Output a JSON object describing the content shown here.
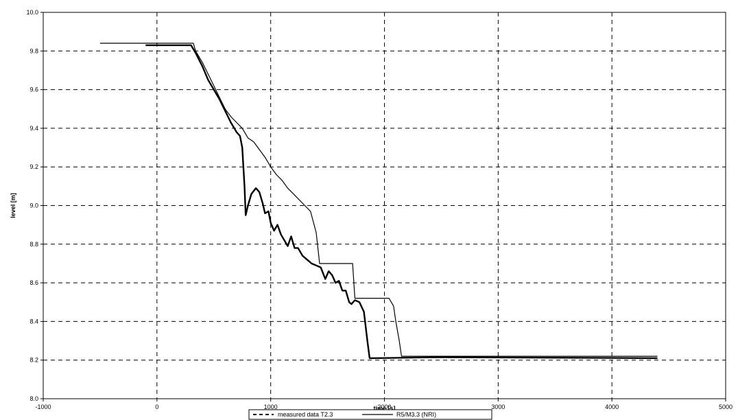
{
  "chart_data": {
    "type": "line",
    "title": "",
    "xlabel": "time [s]",
    "ylabel": "level [m]",
    "xlim": [
      -1000,
      5000
    ],
    "ylim": [
      8.0,
      10.0
    ],
    "x_ticks": [
      "-1000",
      "0",
      "1000",
      "2000",
      "3000",
      "4000",
      "5000"
    ],
    "y_ticks": [
      "8.0",
      "8.2",
      "8.4",
      "8.6",
      "8.8",
      "9.0",
      "9.2",
      "9.4",
      "9.6",
      "9.8",
      "10.0"
    ],
    "grid": true,
    "legend": "bottom",
    "series": [
      {
        "name": "measured data T2.3",
        "color": "#000000",
        "style": "dashed",
        "points": [
          [
            -100,
            9.83
          ],
          [
            300,
            9.83
          ],
          [
            340,
            9.79
          ],
          [
            400,
            9.72
          ],
          [
            450,
            9.65
          ],
          [
            500,
            9.6
          ],
          [
            550,
            9.55
          ],
          [
            600,
            9.49
          ],
          [
            650,
            9.43
          ],
          [
            700,
            9.38
          ],
          [
            730,
            9.36
          ],
          [
            750,
            9.3
          ],
          [
            770,
            9.1
          ],
          [
            780,
            8.95
          ],
          [
            800,
            9.0
          ],
          [
            830,
            9.06
          ],
          [
            870,
            9.09
          ],
          [
            900,
            9.07
          ],
          [
            930,
            9.01
          ],
          [
            950,
            8.96
          ],
          [
            980,
            8.97
          ],
          [
            1000,
            8.91
          ],
          [
            1030,
            8.87
          ],
          [
            1060,
            8.9
          ],
          [
            1090,
            8.85
          ],
          [
            1120,
            8.82
          ],
          [
            1150,
            8.79
          ],
          [
            1180,
            8.84
          ],
          [
            1210,
            8.78
          ],
          [
            1240,
            8.78
          ],
          [
            1280,
            8.74
          ],
          [
            1320,
            8.72
          ],
          [
            1360,
            8.7
          ],
          [
            1400,
            8.69
          ],
          [
            1440,
            8.68
          ],
          [
            1480,
            8.62
          ],
          [
            1510,
            8.66
          ],
          [
            1540,
            8.64
          ],
          [
            1570,
            8.6
          ],
          [
            1600,
            8.61
          ],
          [
            1630,
            8.56
          ],
          [
            1660,
            8.56
          ],
          [
            1690,
            8.5
          ],
          [
            1710,
            8.49
          ],
          [
            1740,
            8.51
          ],
          [
            1780,
            8.5
          ],
          [
            1820,
            8.45
          ],
          [
            1850,
            8.3
          ],
          [
            1870,
            8.21
          ],
          [
            1900,
            8.21
          ],
          [
            2500,
            8.215
          ],
          [
            4400,
            8.21
          ]
        ]
      },
      {
        "name": "R5/M3.3 (NRI)",
        "color": "#000000",
        "style": "solid",
        "points": [
          [
            -500,
            9.84
          ],
          [
            320,
            9.84
          ],
          [
            340,
            9.8
          ],
          [
            400,
            9.74
          ],
          [
            450,
            9.68
          ],
          [
            500,
            9.62
          ],
          [
            550,
            9.56
          ],
          [
            600,
            9.5
          ],
          [
            650,
            9.46
          ],
          [
            700,
            9.43
          ],
          [
            750,
            9.4
          ],
          [
            780,
            9.37
          ],
          [
            800,
            9.35
          ],
          [
            850,
            9.33
          ],
          [
            900,
            9.29
          ],
          [
            950,
            9.25
          ],
          [
            1000,
            9.2
          ],
          [
            1050,
            9.16
          ],
          [
            1100,
            9.13
          ],
          [
            1150,
            9.09
          ],
          [
            1200,
            9.06
          ],
          [
            1250,
            9.03
          ],
          [
            1300,
            9.0
          ],
          [
            1350,
            8.97
          ],
          [
            1400,
            8.86
          ],
          [
            1430,
            8.7
          ],
          [
            1720,
            8.7
          ],
          [
            1740,
            8.52
          ],
          [
            2040,
            8.52
          ],
          [
            2080,
            8.48
          ],
          [
            2100,
            8.4
          ],
          [
            2130,
            8.3
          ],
          [
            2150,
            8.22
          ],
          [
            2400,
            8.22
          ],
          [
            4400,
            8.22
          ]
        ]
      }
    ]
  }
}
